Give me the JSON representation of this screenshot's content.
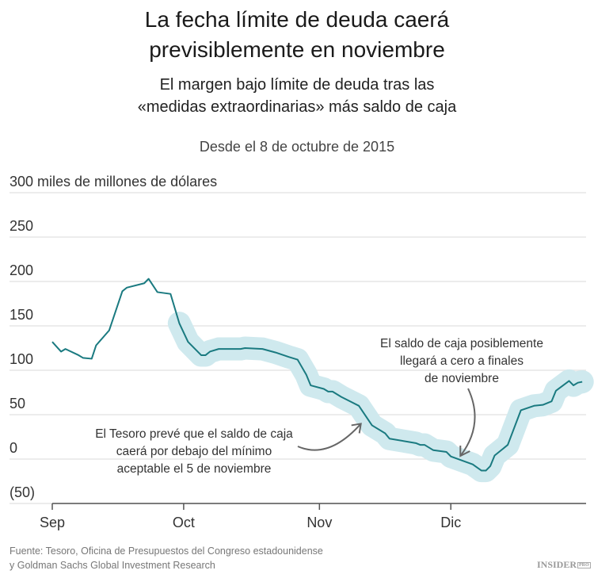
{
  "title_line1": "La fecha límite de deuda caerá",
  "title_line2": "previsiblemente en noviembre",
  "subtitle_line1": "El margen bajo límite de deuda tras las",
  "subtitle_line2": "«medidas extraordinarias» más saldo de caja",
  "date_line": "Desde el 8 de octubre de 2015",
  "source_line1": "Fuente: Tesoro, Oficina de Presupuestos del Congreso estadounidense",
  "source_line2": "y Goldman Sachs Global Investment Research",
  "logo": {
    "main": "INSIDER",
    "badge": "PRO"
  },
  "chart_data": {
    "type": "line",
    "title": "La fecha límite de deuda caerá previsiblemente en noviembre",
    "ylabel": "300 miles de millones de dólares",
    "ylim": [
      -50,
      300
    ],
    "yticks": [
      {
        "value": 300,
        "label": "300 miles de millones de dólares"
      },
      {
        "value": 250,
        "label": "250"
      },
      {
        "value": 200,
        "label": "200"
      },
      {
        "value": 150,
        "label": "150"
      },
      {
        "value": 100,
        "label": "100"
      },
      {
        "value": 50,
        "label": "50"
      },
      {
        "value": 0,
        "label": "0"
      },
      {
        "value": -50,
        "label": "(50)"
      }
    ],
    "xlim": [
      "2015-09-01",
      "2015-12-31"
    ],
    "xticks": [
      {
        "date": "2015-09-01",
        "label": "Sep"
      },
      {
        "date": "2015-10-01",
        "label": "Oct"
      },
      {
        "date": "2015-11-01",
        "label": "Nov"
      },
      {
        "date": "2015-12-01",
        "label": "Dic"
      }
    ],
    "grid": true,
    "colors": {
      "line": "#1a7a80",
      "band": "#cfe9ee",
      "grid": "#e6e6e6",
      "arrow": "#666666"
    },
    "band_start": "2015-10-01",
    "band_halfwidth": 13,
    "series": [
      {
        "x": [
          "2015-09-01",
          "2015-09-03",
          "2015-09-04",
          "2015-09-07",
          "2015-09-08",
          "2015-09-10",
          "2015-09-11",
          "2015-09-14",
          "2015-09-17",
          "2015-09-18",
          "2015-09-22",
          "2015-09-23",
          "2015-09-25",
          "2015-09-28",
          "2015-09-30",
          "2015-10-02",
          "2015-10-05",
          "2015-10-06",
          "2015-10-07",
          "2015-10-09",
          "2015-10-14",
          "2015-10-15",
          "2015-10-19",
          "2015-10-22",
          "2015-10-25",
          "2015-10-27",
          "2015-10-29",
          "2015-10-30",
          "2015-11-02",
          "2015-11-03",
          "2015-11-04",
          "2015-11-06",
          "2015-11-10",
          "2015-11-13",
          "2015-11-16",
          "2015-11-17",
          "2015-11-23",
          "2015-11-24",
          "2015-11-25",
          "2015-11-27",
          "2015-11-30",
          "2015-12-01",
          "2015-12-06",
          "2015-12-08",
          "2015-12-09",
          "2015-12-10",
          "2015-12-11",
          "2015-12-14",
          "2015-12-17",
          "2015-12-20",
          "2015-12-22",
          "2015-12-24",
          "2015-12-25",
          "2015-12-28",
          "2015-12-29",
          "2015-12-30",
          "2015-12-31"
        ],
        "y": [
          132,
          121,
          124,
          117,
          114,
          113,
          128,
          145,
          189,
          193,
          198,
          203,
          188,
          186,
          153,
          132,
          117,
          117,
          121,
          124,
          124,
          125,
          124,
          120,
          115,
          112,
          95,
          83,
          79,
          76,
          76,
          70,
          60,
          38,
          29,
          23,
          18,
          16,
          16,
          10,
          8,
          3,
          -6,
          -13,
          -13,
          -8,
          4,
          16,
          55,
          60,
          61,
          65,
          77,
          88,
          83,
          86,
          87
        ]
      }
    ],
    "annotations": [
      {
        "lines": [
          "El Tesoro prevé que el saldo de caja",
          "caerá por debajo del mínimo",
          "aceptable el 5 de noviembre"
        ],
        "target_date": "2015-11-13",
        "target_value": 38
      },
      {
        "lines": [
          "El saldo de caja posiblemente",
          "llegará a cero a finales",
          "de noviembre"
        ],
        "target_date": "2015-12-03",
        "target_value": 0
      }
    ]
  }
}
